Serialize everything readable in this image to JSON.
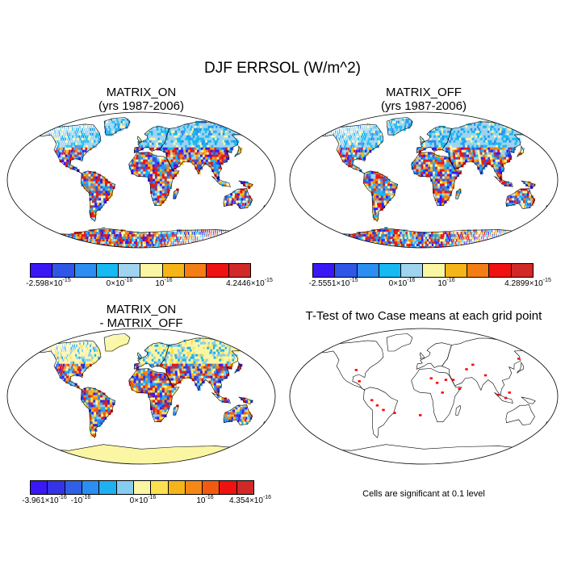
{
  "title": "DJF ERRSOL (W/m^2)",
  "panels": {
    "on": {
      "title_line1": "MATRIX_ON",
      "title_line2": "(yrs 1987-2006)",
      "colors": [
        "#3a17f5",
        "#2f56e6",
        "#2b8ef0",
        "#17b9f2",
        "#9fd3f0",
        "#fbf6a3",
        "#f5b519",
        "#f57d16",
        "#f01111",
        "#d12828"
      ],
      "labels": [
        {
          "base": "-2.598",
          "exp": "-15",
          "text": "-2.598×10"
        },
        {
          "base": "0",
          "exp": "-16",
          "text": "0×10"
        },
        {
          "base": "",
          "exp": "-16",
          "text": "10"
        },
        {
          "base": "4.2446",
          "exp": "-15",
          "text": "4.2446×10"
        }
      ]
    },
    "off": {
      "title_line1": "MATRIX_OFF",
      "title_line2": "(yrs 1987-2006)",
      "colors": [
        "#3a17f5",
        "#2f56e6",
        "#2b8ef0",
        "#17b9f2",
        "#9fd3f0",
        "#fbf6a3",
        "#f5b519",
        "#f57d16",
        "#f01111",
        "#d12828"
      ],
      "labels": [
        {
          "text": "-2.5551×10",
          "exp": "-15"
        },
        {
          "text": "0×10",
          "exp": "-16"
        },
        {
          "text": "10",
          "exp": "-16"
        },
        {
          "text": "4.2899×10",
          "exp": "-15"
        }
      ]
    },
    "diff": {
      "title_line1": "MATRIX_ON",
      "title_line2": "- MATRIX_OFF",
      "colors": [
        "#3a17f5",
        "#3433e8",
        "#2f60e6",
        "#2b8ef0",
        "#1fb0f0",
        "#86cdf0",
        "#fbf6a3",
        "#fde050",
        "#f5b519",
        "#f58716",
        "#f25a10",
        "#f01111",
        "#d12828"
      ],
      "labels": [
        {
          "text": "-3.961×10",
          "exp": "-16"
        },
        {
          "text": "-10",
          "exp": "-16"
        },
        {
          "text": "0×10",
          "exp": "-16"
        },
        {
          "text": "10",
          "exp": "-16"
        },
        {
          "text": "4.354×10",
          "exp": "-16"
        }
      ]
    },
    "ttest": {
      "title": "T-Test of two Case means at each grid point",
      "note": "Cells are significant at 0.1 level"
    }
  },
  "colors": {
    "ocean": "#ffffff",
    "land_outline": "#000000",
    "antarctica_diff": "#fbf6a3",
    "significant": "#ff0000"
  }
}
